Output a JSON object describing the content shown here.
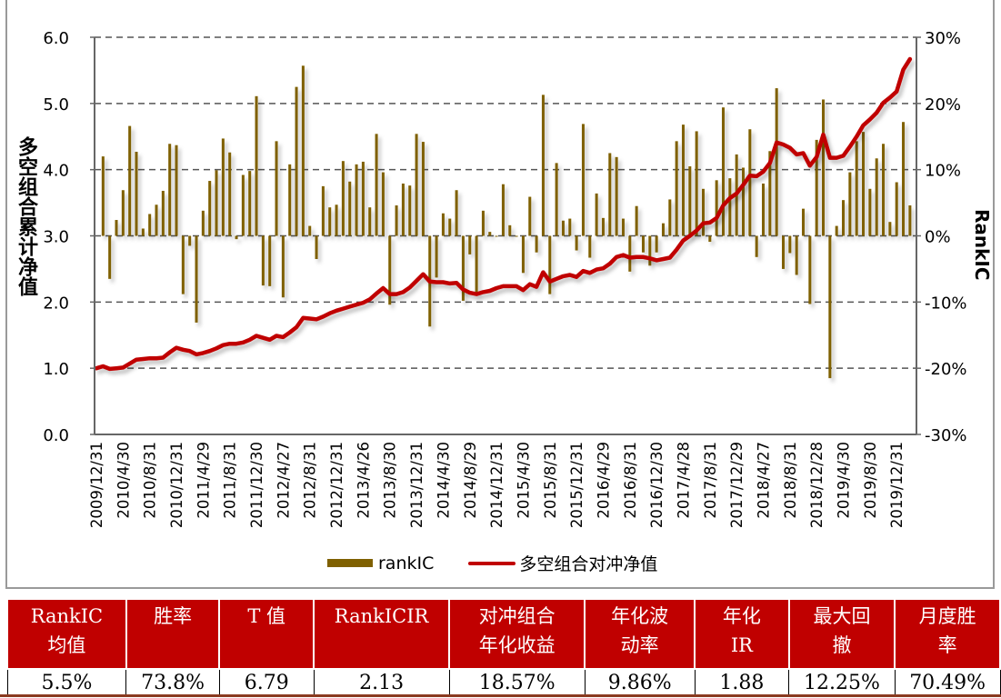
{
  "chart_data": {
    "type": "bar+line",
    "y_left": {
      "label": "多空组合累计净值",
      "range": [
        0,
        6
      ],
      "ticks": [
        "0.0",
        "1.0",
        "2.0",
        "3.0",
        "4.0",
        "5.0",
        "6.0"
      ]
    },
    "y_right": {
      "label": "RankIC",
      "range": [
        -30,
        30
      ],
      "unit": "%",
      "ticks": [
        "-30%",
        "-20%",
        "-10%",
        "0%",
        "10%",
        "20%",
        "30%"
      ]
    },
    "grid": true,
    "legend_placement": "bottom",
    "x_tick_labels": [
      "2009/12/31",
      "2010/4/30",
      "2010/8/31",
      "2010/12/31",
      "2011/4/29",
      "2011/8/31",
      "2011/12/30",
      "2012/4/27",
      "2012/8/31",
      "2012/12/31",
      "2013/4/26",
      "2013/8/30",
      "2013/12/31",
      "2014/4/30",
      "2014/8/29",
      "2014/12/31",
      "2015/4/30",
      "2015/8/31",
      "2015/12/31",
      "2016/4/29",
      "2016/8/31",
      "2016/12/30",
      "2017/4/28",
      "2017/8/31",
      "2017/12/29",
      "2018/4/27",
      "2018/8/31",
      "2018/12/28",
      "2019/4/30",
      "2019/8/30",
      "2019/12/31"
    ],
    "series": [
      {
        "name": "rankIC",
        "type": "bar",
        "axis": "right",
        "color": "#7F6000",
        "values_pct": [
          null,
          12.0,
          -6.5,
          2.4,
          6.9,
          16.6,
          12.7,
          1.1,
          3.3,
          4.7,
          6.8,
          13.9,
          13.7,
          -8.8,
          -1.5,
          -13.1,
          3.8,
          8.3,
          9.9,
          14.7,
          12.6,
          -0.5,
          9.2,
          9.8,
          21.1,
          -7.5,
          -7.6,
          14.3,
          -9.3,
          10.8,
          22.5,
          25.7,
          1.5,
          -3.5,
          7.5,
          4.3,
          4.7,
          11.3,
          8.2,
          10.8,
          11.2,
          4.3,
          15.4,
          9.6,
          -10.4,
          4.6,
          7.9,
          7.6,
          15.4,
          14.2,
          -13.7,
          -6.3,
          3.4,
          2.6,
          6.9,
          -9.8,
          -2.8,
          -8.7,
          3.8,
          0.6,
          -0.1,
          7.8,
          1.6,
          -0.1,
          -5.6,
          5.9,
          -2.5,
          21.3,
          -8.8,
          11.0,
          2.3,
          2.6,
          -2.2,
          16.9,
          -3.3,
          6.4,
          2.7,
          12.5,
          11.9,
          2.6,
          -5.4,
          4.5,
          -2.5,
          -4.5,
          -2.5,
          1.9,
          5.5,
          14.3,
          16.8,
          10.5,
          15.8,
          7.1,
          -0.9,
          8.4,
          19.4,
          8.7,
          12.3,
          10.3,
          16.1,
          -3.2,
          7.9,
          12.8,
          22.3,
          -5.0,
          -2.6,
          -5.9,
          4.1,
          -10.3,
          14.5,
          20.6,
          -21.5,
          1.5,
          5.4,
          9.6,
          14.3,
          15.7,
          7.1,
          11.7,
          13.9,
          2.1,
          8.1,
          17.2,
          4.6
        ]
      },
      {
        "name": "多空组合对冲净值",
        "type": "line",
        "axis": "left",
        "color": "#C00000",
        "values": [
          1.0,
          1.03,
          0.99,
          1.0,
          1.01,
          1.07,
          1.13,
          1.14,
          1.15,
          1.15,
          1.16,
          1.24,
          1.31,
          1.28,
          1.26,
          1.21,
          1.23,
          1.26,
          1.3,
          1.35,
          1.37,
          1.37,
          1.39,
          1.43,
          1.49,
          1.46,
          1.43,
          1.49,
          1.47,
          1.54,
          1.62,
          1.76,
          1.75,
          1.74,
          1.78,
          1.83,
          1.87,
          1.9,
          1.93,
          1.96,
          1.99,
          2.04,
          2.13,
          2.21,
          2.12,
          2.12,
          2.15,
          2.22,
          2.32,
          2.42,
          2.31,
          2.3,
          2.3,
          2.28,
          2.29,
          2.19,
          2.14,
          2.12,
          2.15,
          2.17,
          2.21,
          2.24,
          2.24,
          2.24,
          2.18,
          2.27,
          2.23,
          2.45,
          2.31,
          2.35,
          2.39,
          2.41,
          2.38,
          2.47,
          2.44,
          2.49,
          2.51,
          2.58,
          2.68,
          2.71,
          2.67,
          2.68,
          2.68,
          2.66,
          2.63,
          2.65,
          2.67,
          2.79,
          2.93,
          3.0,
          3.08,
          3.19,
          3.2,
          3.27,
          3.46,
          3.57,
          3.64,
          3.77,
          3.91,
          3.9,
          3.97,
          4.1,
          4.41,
          4.38,
          4.33,
          4.23,
          4.25,
          4.06,
          4.19,
          4.53,
          4.18,
          4.18,
          4.21,
          4.35,
          4.5,
          4.67,
          4.76,
          4.86,
          5.01,
          5.09,
          5.18,
          5.51,
          5.67
        ]
      }
    ]
  },
  "legend": {
    "bar_label": "rankIC",
    "line_label": "多空组合对冲净值"
  },
  "table": {
    "headers": [
      [
        "RankIC",
        "均值"
      ],
      [
        "胜率",
        ""
      ],
      [
        "T 值",
        ""
      ],
      [
        "RankICIR",
        ""
      ],
      [
        "对冲组合",
        "年化收益"
      ],
      [
        "年化波",
        "动率"
      ],
      [
        "年化",
        "IR"
      ],
      [
        "最大回",
        "撤"
      ],
      [
        "月度胜",
        "率"
      ]
    ],
    "values": [
      "5.5%",
      "73.8%",
      "6.79",
      "2.13",
      "18.57%",
      "9.86%",
      "1.88",
      "12.25%",
      "70.49%"
    ]
  }
}
